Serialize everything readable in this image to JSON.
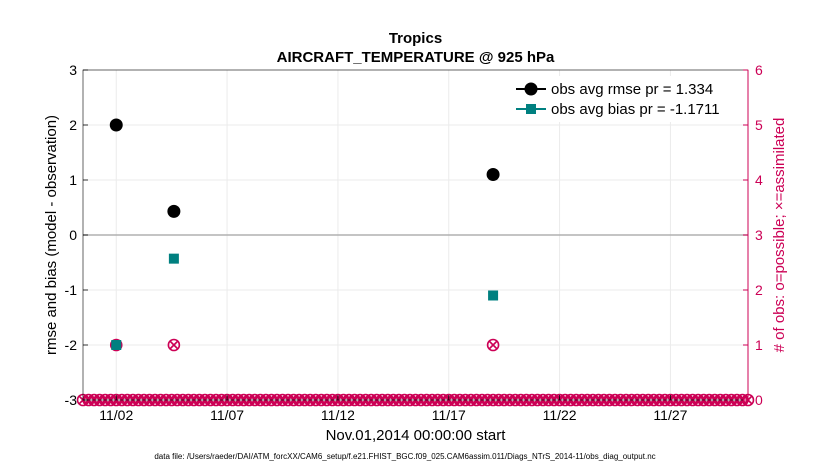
{
  "chart_data": {
    "type": "scatter",
    "title": "Tropics",
    "subtitle": "AIRCRAFT_TEMPERATURE @ 925 hPa",
    "xlabel": "Nov.01,2014 00:00:00 start",
    "ylabel": "rmse and bias (model - observation)",
    "y2label": "# of obs: o=possible; ×=assimilated",
    "xlim": [
      0.5,
      30.5
    ],
    "ylim": [
      -3,
      3
    ],
    "y2lim": [
      0,
      6
    ],
    "x_ticks": [
      {
        "x": 2,
        "label": "11/02"
      },
      {
        "x": 7,
        "label": "11/07"
      },
      {
        "x": 12,
        "label": "11/12"
      },
      {
        "x": 17,
        "label": "11/17"
      },
      {
        "x": 22,
        "label": "11/22"
      },
      {
        "x": 27,
        "label": "11/27"
      }
    ],
    "y_ticks": [
      {
        "v": 3,
        "label": "3"
      },
      {
        "v": 2,
        "label": "2"
      },
      {
        "v": 1,
        "label": "1"
      },
      {
        "v": 0,
        "label": "0"
      },
      {
        "v": -1,
        "label": "-1"
      },
      {
        "v": -2,
        "label": "-2"
      },
      {
        "v": -3,
        "label": "-3"
      }
    ],
    "y2_ticks": [
      {
        "v": 6,
        "label": "6"
      },
      {
        "v": 5,
        "label": "5"
      },
      {
        "v": 4,
        "label": "4"
      },
      {
        "v": 3,
        "label": "3"
      },
      {
        "v": 2,
        "label": "2"
      },
      {
        "v": 1,
        "label": "1"
      },
      {
        "v": 0,
        "label": "0"
      }
    ],
    "grid": true,
    "legend_position": "top-right",
    "series": [
      {
        "name": "obs avg rmse pr = 1.334",
        "color": "#000000",
        "marker": "circle",
        "points": [
          [
            2.0,
            2.0
          ],
          [
            4.6,
            0.43
          ],
          [
            19.0,
            1.1
          ]
        ]
      },
      {
        "name": "obs avg bias pr = -1.1711",
        "color": "#008080",
        "marker": "square",
        "points": [
          [
            2.0,
            -2.0
          ],
          [
            4.6,
            -0.43
          ],
          [
            19.0,
            -1.1
          ]
        ]
      }
    ],
    "obs_counts": {
      "color": "#cc0055",
      "x_start": 0.5,
      "x_end": 30.5,
      "step": 0.25,
      "nonzero": [
        {
          "x": 2.0,
          "possible": 1,
          "assimilated": 1
        },
        {
          "x": 4.6,
          "possible": 1,
          "assimilated": 1
        },
        {
          "x": 19.0,
          "possible": 1,
          "assimilated": 1
        }
      ]
    }
  },
  "footer": {
    "data_file": "data file: /Users/raeder/DAI/ATM_forcXX/CAM6_setup/f.e21.FHIST_BGC.f09_025.CAM6assim.011/Diags_NTrS_2014-11/obs_diag_output.nc"
  },
  "colors": {
    "primary": "#000000",
    "bias": "#008080",
    "counts": "#cc0055",
    "zero_line": "#b0b0b0",
    "grid": "#ebebeb"
  }
}
